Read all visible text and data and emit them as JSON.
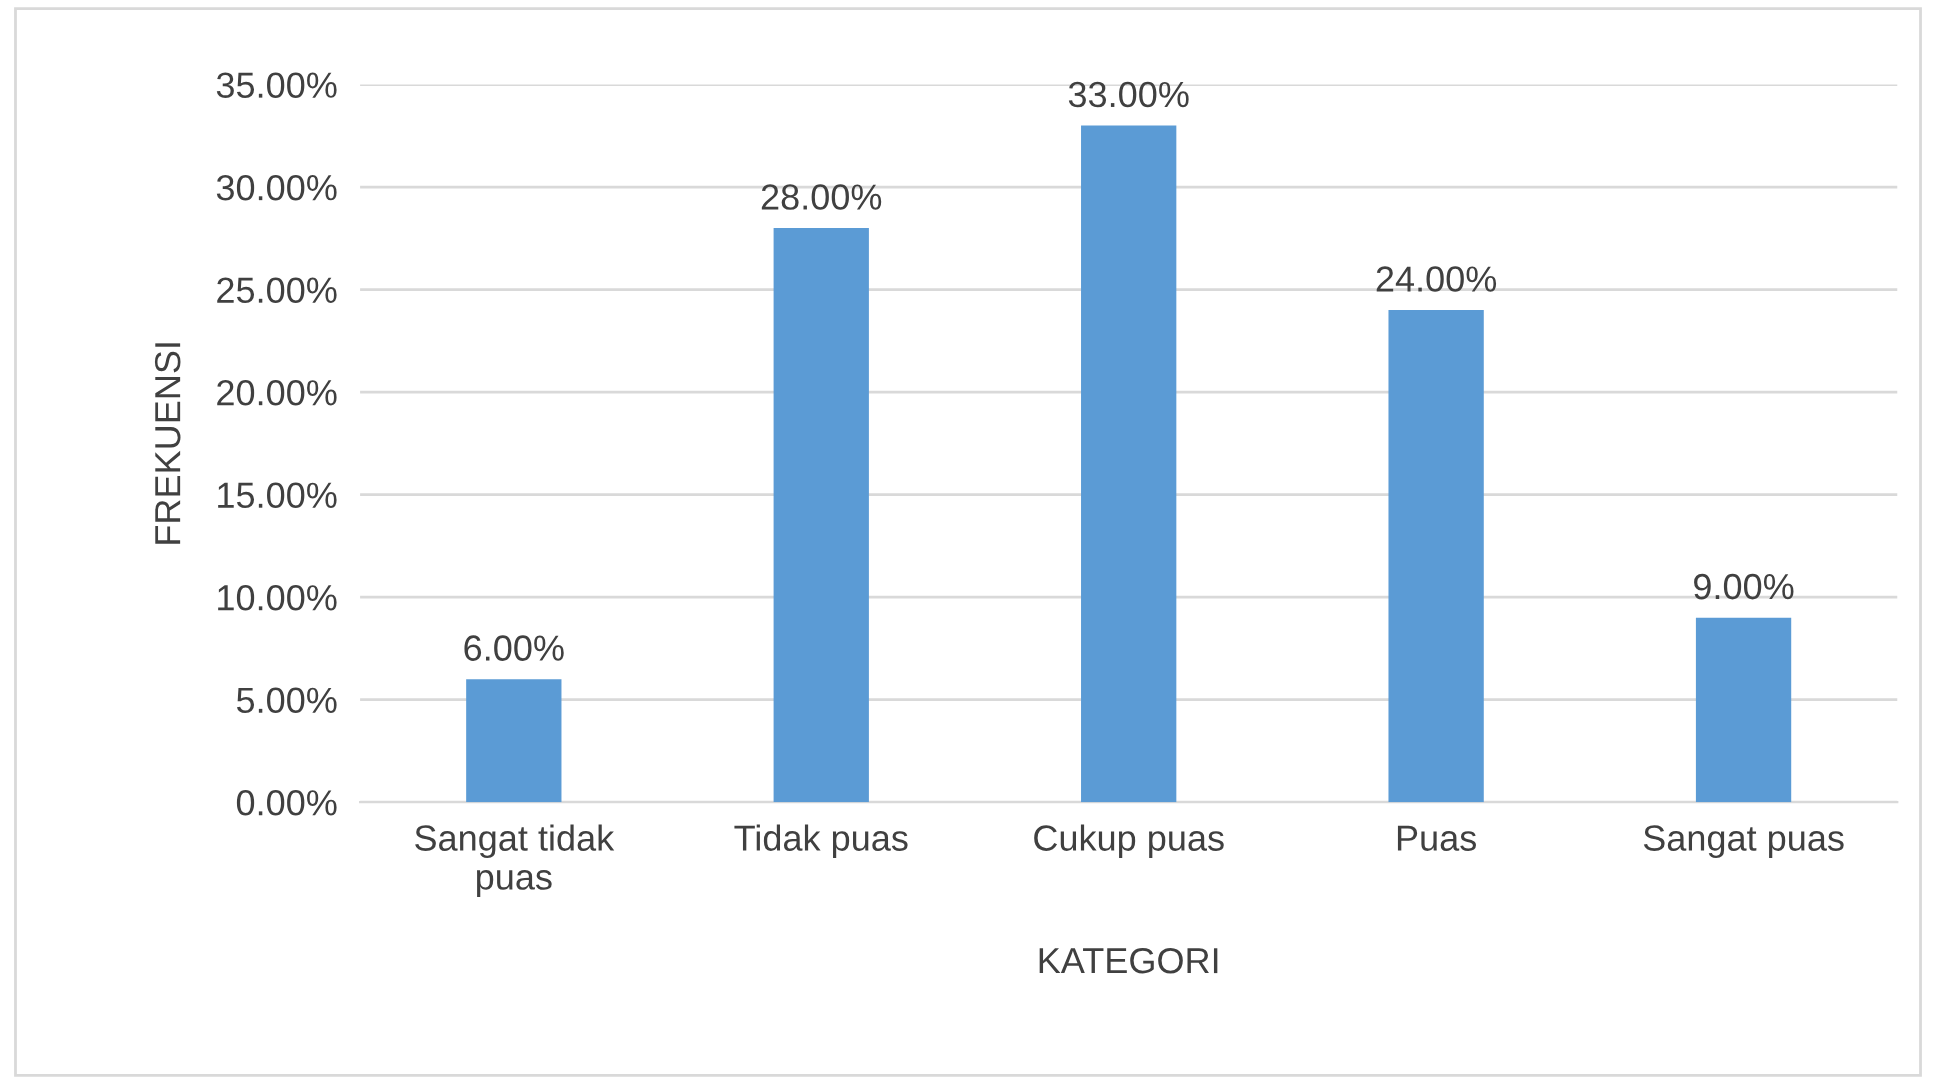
{
  "chart_data": {
    "type": "bar",
    "xlabel": "KATEGORI",
    "ylabel": "FREKUENSI",
    "categories": [
      "Sangat tidak\npuas",
      "Tidak puas",
      "Cukup puas",
      "Puas",
      "Sangat puas"
    ],
    "values": [
      6,
      28,
      33,
      24,
      9
    ],
    "value_labels": [
      "6.00%",
      "28.00%",
      "33.00%",
      "24.00%",
      "9.00%"
    ],
    "color": "#5b9bd5",
    "ylim": [
      0,
      35
    ],
    "yticks": [
      {
        "value": 0,
        "label": "0.00%"
      },
      {
        "value": 5,
        "label": "5.00%"
      },
      {
        "value": 10,
        "label": "10.00%"
      },
      {
        "value": 15,
        "label": "15.00%"
      },
      {
        "value": 20,
        "label": "20.00%"
      },
      {
        "value": 25,
        "label": "25.00%"
      },
      {
        "value": 30,
        "label": "30.00%"
      },
      {
        "value": 35,
        "label": "35.00%"
      }
    ],
    "grid": "y",
    "legend": false
  }
}
